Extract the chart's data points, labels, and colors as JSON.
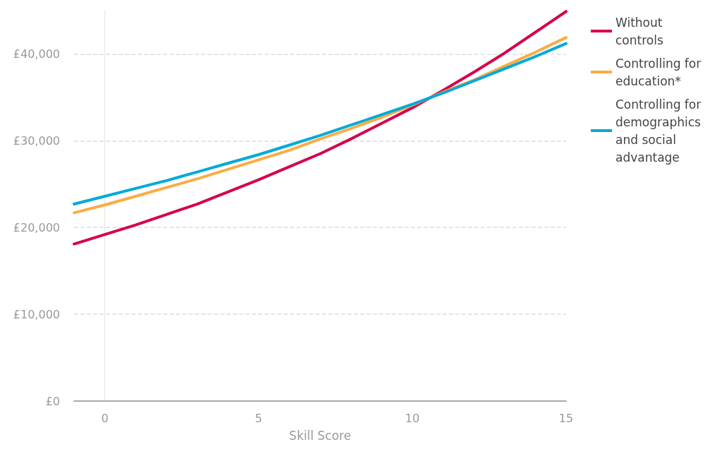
{
  "chart_data": {
    "type": "line",
    "xlabel": "Skill Score",
    "x": [
      -1,
      0,
      1,
      2,
      3,
      4,
      5,
      6,
      7,
      8,
      9,
      10,
      11,
      12,
      13,
      14,
      15
    ],
    "series": [
      {
        "name": "Without controls",
        "color": "#d5004e",
        "values": [
          18100,
          19200,
          20300,
          21500,
          22700,
          24100,
          25500,
          27000,
          28500,
          30200,
          32000,
          33800,
          35800,
          37900,
          40100,
          42500,
          44900
        ]
      },
      {
        "name": "Controlling for education*",
        "color": "#fbac43",
        "values": [
          21700,
          22600,
          23600,
          24600,
          25600,
          26700,
          27800,
          28900,
          30200,
          31400,
          32700,
          34100,
          35600,
          37000,
          38600,
          40200,
          41900
        ]
      },
      {
        "name": "Controlling for demographics and social advantage",
        "color": "#00aad8",
        "values": [
          22700,
          23600,
          24500,
          25400,
          26400,
          27400,
          28400,
          29500,
          30600,
          31800,
          33000,
          34200,
          35500,
          36900,
          38300,
          39700,
          41200
        ]
      }
    ],
    "xlim": [
      -1,
      15
    ],
    "xticks": [
      0,
      5,
      10,
      15
    ],
    "ylim": [
      0,
      45000
    ],
    "yticks": [
      {
        "value": 0,
        "label": "£0"
      },
      {
        "value": 10000,
        "label": "£10,000"
      },
      {
        "value": 20000,
        "label": "£20,000"
      },
      {
        "value": 30000,
        "label": "£30,000"
      },
      {
        "value": 40000,
        "label": "£40,000"
      }
    ],
    "grid": "y",
    "legend": "top right",
    "marker": "none",
    "line_style": "solid"
  }
}
